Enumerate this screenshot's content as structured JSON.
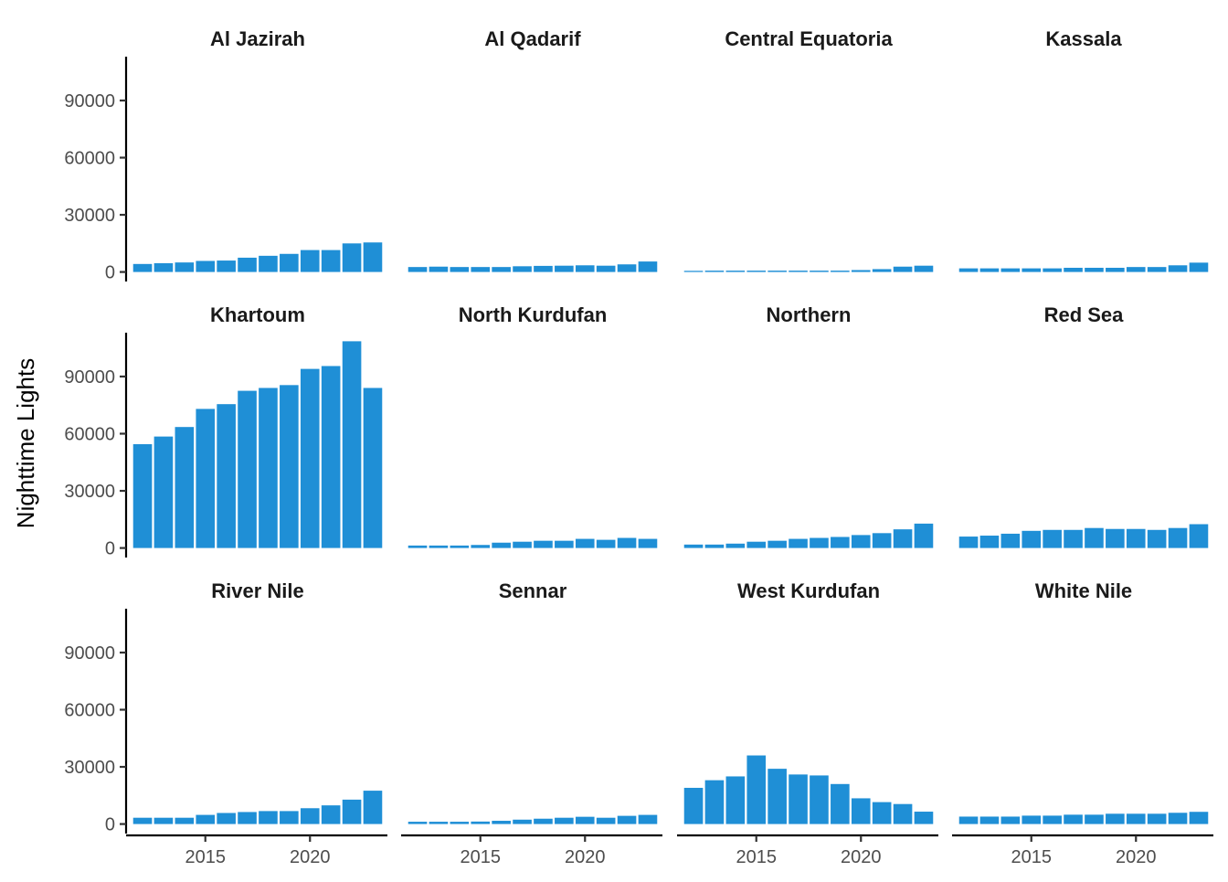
{
  "chart_data": {
    "type": "bar",
    "facet_layout": "4 columns x 3 rows, shared scales",
    "xlabel": "",
    "ylabel": "Nighttime Lights",
    "ylim": [
      -5000,
      113000
    ],
    "xlim": [
      2011.3,
      2023.7
    ],
    "y_ticks": [
      0,
      30000,
      60000,
      90000
    ],
    "y_tick_labels": [
      "0",
      "30000",
      "60000",
      "90000"
    ],
    "x_ticks": [
      2015,
      2020
    ],
    "x_tick_labels": [
      "2015",
      "2020"
    ],
    "bar_color": "#1f8fd6",
    "grid": false,
    "legend": "none",
    "years": [
      2012,
      2013,
      2014,
      2015,
      2016,
      2017,
      2018,
      2019,
      2020,
      2021,
      2022,
      2023
    ],
    "panels": [
      {
        "title": "Al Jazirah",
        "values": [
          4200,
          4600,
          5000,
          5800,
          6000,
          7500,
          8500,
          9500,
          11500,
          11500,
          15000,
          15500
        ]
      },
      {
        "title": "Al Qadarif",
        "values": [
          2600,
          2800,
          2600,
          2600,
          2600,
          3000,
          3200,
          3300,
          3500,
          3300,
          4000,
          5500
        ]
      },
      {
        "title": "Central Equatoria",
        "values": [
          600,
          700,
          700,
          700,
          700,
          700,
          700,
          700,
          1000,
          1500,
          2800,
          3300
        ]
      },
      {
        "title": "Kassala",
        "values": [
          1900,
          1900,
          1900,
          1900,
          1900,
          2200,
          2200,
          2200,
          2600,
          2600,
          3500,
          4900
        ]
      },
      {
        "title": "Khartoum",
        "values": [
          54500,
          58500,
          63500,
          73000,
          75500,
          82500,
          84000,
          85500,
          94000,
          95500,
          108500,
          84000
        ]
      },
      {
        "title": "North Kurdufan",
        "values": [
          1300,
          1300,
          1300,
          1600,
          2800,
          3300,
          3800,
          3800,
          4800,
          4300,
          5300,
          4800
        ]
      },
      {
        "title": "Northern",
        "values": [
          1800,
          1800,
          2300,
          3300,
          3800,
          4800,
          5300,
          5800,
          6800,
          7800,
          9800,
          12800
        ]
      },
      {
        "title": "Red Sea",
        "values": [
          6000,
          6500,
          7500,
          9000,
          9500,
          9500,
          10500,
          10000,
          10000,
          9500,
          10500,
          12500
        ]
      },
      {
        "title": "River Nile",
        "values": [
          3300,
          3300,
          3300,
          4800,
          5800,
          6300,
          6800,
          6800,
          8300,
          9800,
          12800,
          17500
        ]
      },
      {
        "title": "Sennar",
        "values": [
          1200,
          1200,
          1200,
          1300,
          1700,
          2300,
          2800,
          3300,
          3800,
          3300,
          4300,
          4800
        ]
      },
      {
        "title": "West Kurdufan",
        "values": [
          19000,
          23000,
          25000,
          36000,
          29000,
          26000,
          25500,
          21000,
          13500,
          11500,
          10500,
          6500
        ]
      },
      {
        "title": "White Nile",
        "values": [
          3900,
          3900,
          3900,
          4400,
          4400,
          4900,
          4900,
          5400,
          5400,
          5400,
          5900,
          6400
        ]
      }
    ]
  }
}
